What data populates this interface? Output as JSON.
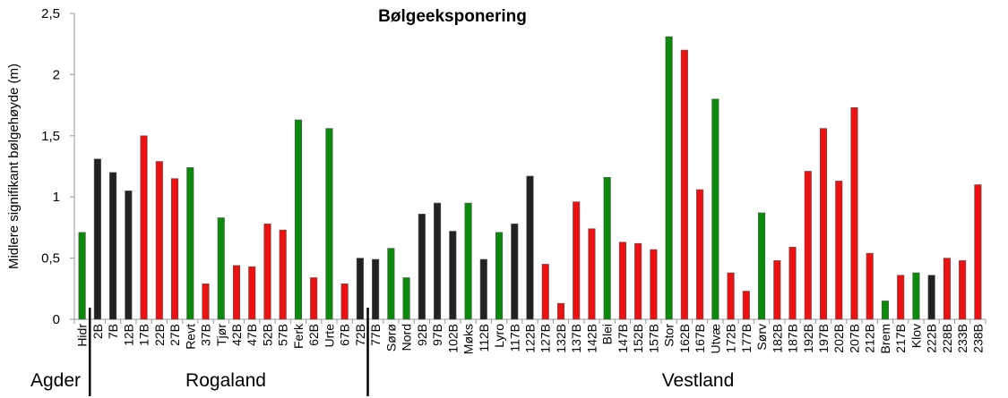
{
  "chart_data": {
    "type": "bar",
    "title": "Bølgeeksponering",
    "ylabel": "Midlere signifikant bølgehøyde  (m)",
    "xlabel": "",
    "ylim": [
      0,
      2.5
    ],
    "yticks": [
      "0",
      "0,5",
      "1",
      "1,5",
      "2",
      "2,5"
    ],
    "ytick_values": [
      0,
      0.5,
      1,
      1.5,
      2,
      2.5
    ],
    "grid": false,
    "colors": {
      "green": "#0a8a0a",
      "black": "#222222",
      "red": "#ee1111"
    },
    "categories": [
      "Hidr",
      "2B",
      "7B",
      "12B",
      "17B",
      "22B",
      "27B",
      "Revt",
      "37B",
      "Tjør",
      "42B",
      "47B",
      "52B",
      "57B",
      "Ferk",
      "62B",
      "Urte",
      "67B",
      "72B",
      "77B",
      "Sørø",
      "Nord",
      "92B",
      "97B",
      "102B",
      "Møks",
      "112B",
      "Lyro",
      "117B",
      "122B",
      "127B",
      "132B",
      "137B",
      "142B",
      "Blei",
      "147B",
      "152B",
      "157B",
      "Stor",
      "162B",
      "167B",
      "Utvæ",
      "172B",
      "177B",
      "Sørv",
      "182B",
      "187B",
      "192B",
      "197B",
      "202B",
      "207B",
      "212B",
      "Brem",
      "217B",
      "Klov",
      "222B",
      "228B",
      "233B",
      "238B"
    ],
    "values": [
      0.71,
      1.31,
      1.2,
      1.05,
      1.5,
      1.29,
      1.15,
      1.24,
      0.29,
      0.83,
      0.44,
      0.43,
      0.78,
      0.73,
      1.63,
      0.34,
      1.56,
      0.29,
      0.5,
      0.49,
      0.58,
      0.34,
      0.86,
      0.95,
      0.72,
      0.95,
      0.49,
      0.71,
      0.78,
      1.17,
      0.45,
      0.13,
      0.96,
      0.74,
      1.16,
      0.63,
      0.62,
      0.57,
      2.31,
      2.2,
      1.06,
      1.8,
      0.38,
      0.23,
      0.87,
      0.48,
      0.59,
      1.21,
      1.56,
      1.13,
      1.73,
      0.54,
      0.15,
      0.36,
      0.38,
      0.36,
      0.5,
      0.48,
      1.1
    ],
    "bar_colors": [
      "green",
      "black",
      "black",
      "black",
      "red",
      "red",
      "red",
      "green",
      "red",
      "green",
      "red",
      "red",
      "red",
      "red",
      "green",
      "red",
      "green",
      "red",
      "black",
      "black",
      "green",
      "green",
      "black",
      "black",
      "black",
      "green",
      "black",
      "green",
      "black",
      "black",
      "red",
      "red",
      "red",
      "red",
      "green",
      "red",
      "red",
      "red",
      "green",
      "red",
      "red",
      "green",
      "red",
      "red",
      "green",
      "red",
      "red",
      "red",
      "red",
      "red",
      "red",
      "red",
      "green",
      "red",
      "green",
      "black",
      "red",
      "red",
      "red"
    ],
    "regions": [
      {
        "name": "Agder",
        "start": 0,
        "end": 0
      },
      {
        "name": "Rogaland",
        "start": 1,
        "end": 18
      },
      {
        "name": "Vestland",
        "start": 19,
        "end": 58
      }
    ]
  }
}
